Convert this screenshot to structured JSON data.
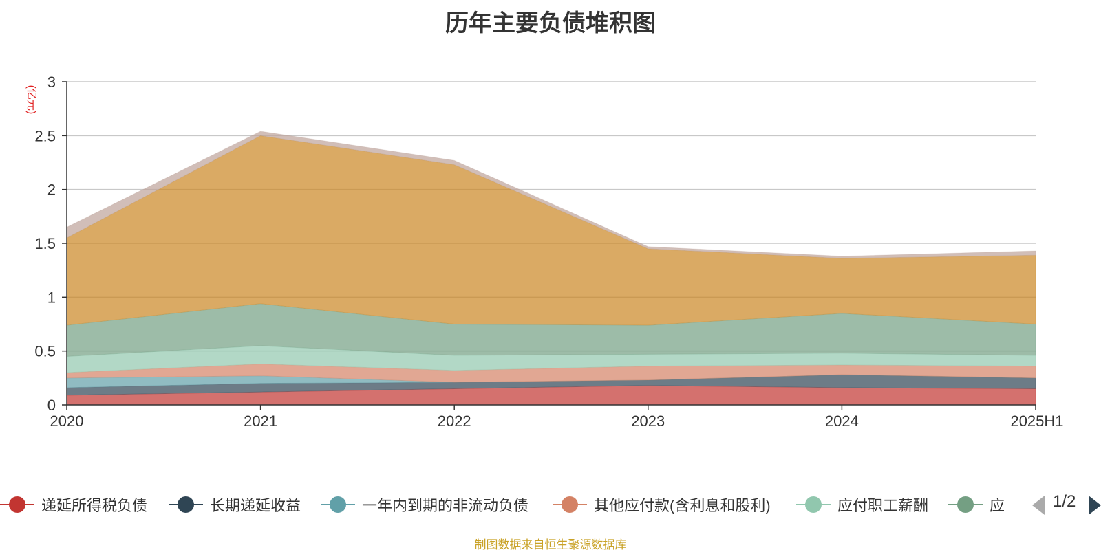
{
  "chart_data": {
    "type": "area",
    "stacked": true,
    "title": "历年主要负债堆积图",
    "ylabel": "(亿元)",
    "categories": [
      "2020",
      "2021",
      "2022",
      "2023",
      "2024",
      "2025H1"
    ],
    "ylim": [
      0,
      3
    ],
    "yticks": [
      "0",
      "0.5",
      "1",
      "1.5",
      "2",
      "2.5",
      "3"
    ],
    "grid": true,
    "series": [
      {
        "name": "递延所得税负债",
        "color": "#c23531",
        "values": [
          0.09,
          0.12,
          0.15,
          0.18,
          0.16,
          0.15
        ]
      },
      {
        "name": "长期递延收益",
        "color": "#2f4554",
        "values": [
          0.07,
          0.08,
          0.06,
          0.05,
          0.12,
          0.1
        ]
      },
      {
        "name": "一年内到期的非流动负债",
        "color": "#61a0a8",
        "values": [
          0.09,
          0.07,
          0.0,
          0.0,
          0.0,
          0.0
        ]
      },
      {
        "name": "其他应付款(含利息和股利)",
        "color": "#d48265",
        "values": [
          0.05,
          0.11,
          0.11,
          0.13,
          0.09,
          0.11
        ]
      },
      {
        "name": "应付职工薪酬",
        "color": "#91c7ae",
        "values": [
          0.15,
          0.17,
          0.14,
          0.11,
          0.11,
          0.1
        ]
      },
      {
        "name": "应",
        "color": "#749f83",
        "values": [
          0.29,
          0.39,
          0.29,
          0.27,
          0.37,
          0.29
        ]
      },
      {
        "name": "",
        "color": "#ca8622",
        "values": [
          0.81,
          1.56,
          1.48,
          0.71,
          0.51,
          0.64
        ]
      },
      {
        "name": "",
        "color": "#bda29a",
        "values": [
          0.1,
          0.04,
          0.04,
          0.02,
          0.02,
          0.04
        ]
      }
    ]
  },
  "legend": {
    "page": "1/2"
  },
  "footer": {
    "source": "制图数据来自恒生聚源数据库"
  }
}
